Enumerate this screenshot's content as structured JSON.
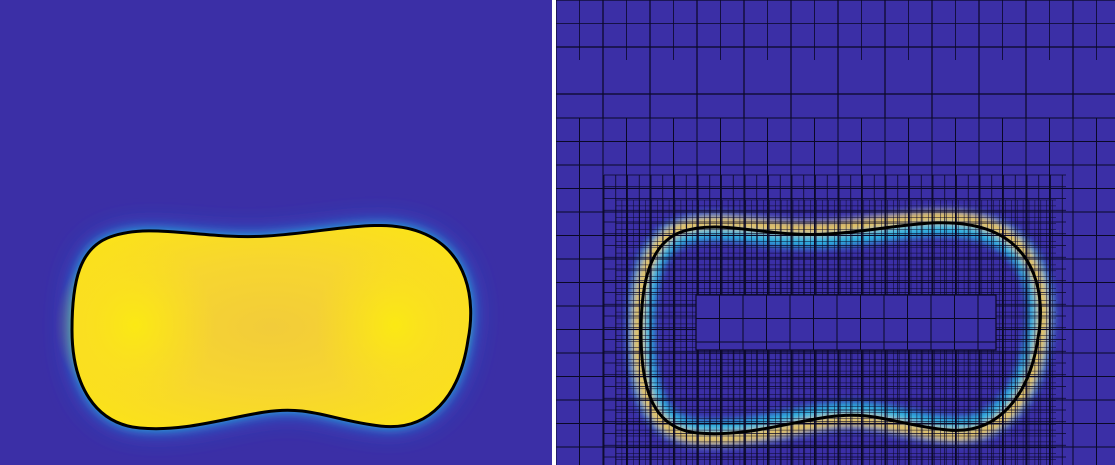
{
  "figure": {
    "left_panel": {
      "content": "phase-field",
      "colors": {
        "background": "#3b2fa6",
        "cyan": "#27c7e3",
        "inside": "#fbe21a",
        "center": "#f2cc3a",
        "interface": "#000000"
      }
    },
    "right_panel": {
      "content": "adaptive-mesh-gradient",
      "colors": {
        "background": "#3b2fa6",
        "mesh_line": "#0a0826",
        "band_cyan": "#2ab7e2",
        "band_yellow": "#f3c42c",
        "interface": "#000000"
      },
      "refinement_levels": [
        "coarse",
        "medium",
        "fine",
        "finest"
      ]
    }
  }
}
